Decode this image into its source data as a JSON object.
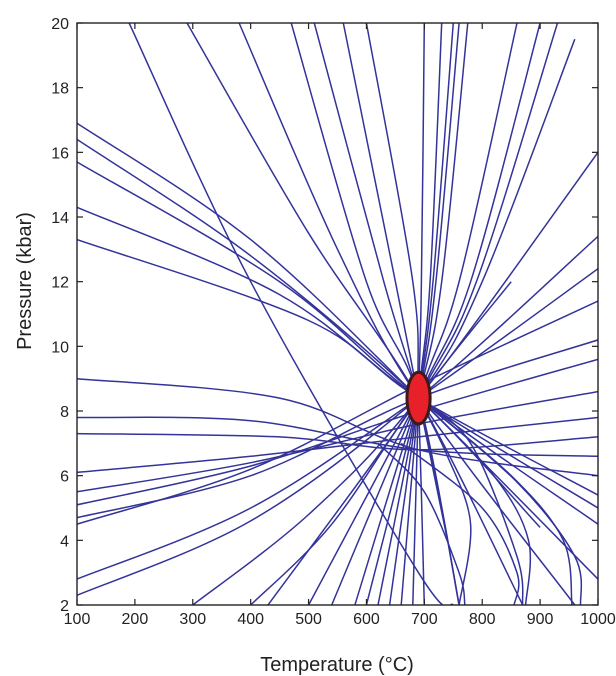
{
  "chart_data": {
    "type": "line",
    "title": "",
    "xlabel": "Temperature (°C)",
    "ylabel": "Pressure (kbar)",
    "xlim": [
      100,
      1000
    ],
    "ylim": [
      2,
      20
    ],
    "x_ticks": [
      100,
      200,
      300,
      400,
      500,
      600,
      700,
      800,
      900,
      1000
    ],
    "y_ticks": [
      2,
      4,
      6,
      8,
      10,
      12,
      14,
      16,
      18,
      20
    ],
    "grid": false,
    "colors": {
      "line": "#33339a",
      "point_fill": "#e8202a",
      "point_stroke": "#3a1a1a",
      "axis": "#222222"
    },
    "estimate": {
      "temperature": 690,
      "pressure": 8.4,
      "temperature_uncertainty": 20,
      "pressure_uncertainty": 0.8
    },
    "series": [
      {
        "points": [
          [
            100,
            16.9
          ],
          [
            400,
            13.3
          ],
          [
            690,
            8.4
          ],
          [
            1000,
            2.8
          ]
        ]
      },
      {
        "points": [
          [
            100,
            16.4
          ],
          [
            400,
            12.8
          ],
          [
            690,
            8.4
          ],
          [
            900,
            4.4
          ]
        ]
      },
      {
        "points": [
          [
            100,
            15.7
          ],
          [
            450,
            12.0
          ],
          [
            690,
            8.4
          ],
          [
            1000,
            4.5
          ]
        ]
      },
      {
        "points": [
          [
            100,
            14.3
          ],
          [
            450,
            11.6
          ],
          [
            690,
            8.4
          ],
          [
            1000,
            5.0
          ]
        ]
      },
      {
        "points": [
          [
            100,
            13.3
          ],
          [
            500,
            10.8
          ],
          [
            690,
            8.4
          ],
          [
            1000,
            5.4
          ]
        ]
      },
      {
        "points": [
          [
            100,
            9.0
          ],
          [
            450,
            8.4
          ],
          [
            690,
            6.8
          ],
          [
            1000,
            6.0
          ]
        ]
      },
      {
        "points": [
          [
            100,
            7.8
          ],
          [
            400,
            7.7
          ],
          [
            690,
            6.8
          ],
          [
            1000,
            6.6
          ]
        ]
      },
      {
        "points": [
          [
            100,
            7.3
          ],
          [
            450,
            7.2
          ],
          [
            690,
            6.8
          ],
          [
            1000,
            7.2
          ]
        ]
      },
      {
        "points": [
          [
            100,
            6.1
          ],
          [
            400,
            6.6
          ],
          [
            690,
            7.2
          ],
          [
            1000,
            7.8
          ]
        ]
      },
      {
        "points": [
          [
            100,
            5.5
          ],
          [
            400,
            6.4
          ],
          [
            690,
            7.6
          ],
          [
            1000,
            8.6
          ]
        ]
      },
      {
        "points": [
          [
            100,
            5.1
          ],
          [
            400,
            6.3
          ],
          [
            690,
            8.0
          ],
          [
            1000,
            9.6
          ]
        ]
      },
      {
        "points": [
          [
            100,
            4.7
          ],
          [
            400,
            6.0
          ],
          [
            690,
            8.4
          ],
          [
            1000,
            10.2
          ]
        ]
      },
      {
        "points": [
          [
            100,
            4.5
          ],
          [
            400,
            6.2
          ],
          [
            690,
            8.8
          ],
          [
            1000,
            11.4
          ]
        ]
      },
      {
        "points": [
          [
            100,
            2.8
          ],
          [
            400,
            5.0
          ],
          [
            690,
            8.4
          ],
          [
            1000,
            12.4
          ]
        ]
      },
      {
        "points": [
          [
            100,
            2.3
          ],
          [
            400,
            4.6
          ],
          [
            690,
            8.4
          ],
          [
            1000,
            13.4
          ]
        ]
      },
      {
        "points": [
          [
            300,
            2.0
          ],
          [
            500,
            4.8
          ],
          [
            690,
            8.4
          ],
          [
            1000,
            16.0
          ]
        ]
      },
      {
        "points": [
          [
            400,
            2.0
          ],
          [
            540,
            4.5
          ],
          [
            690,
            8.4
          ],
          [
            850,
            12.0
          ]
        ]
      },
      {
        "points": [
          [
            380,
            20.0
          ],
          [
            550,
            13.0
          ],
          [
            690,
            8.4
          ],
          [
            960,
            2.0
          ]
        ]
      },
      {
        "points": [
          [
            290,
            20.0
          ],
          [
            500,
            13.5
          ],
          [
            690,
            8.4
          ],
          [
            870,
            2.0
          ]
        ]
      },
      {
        "points": [
          [
            190,
            20.0
          ],
          [
            400,
            12.0
          ],
          [
            690,
            3.0
          ],
          [
            750,
            2.0
          ]
        ]
      },
      {
        "points": [
          [
            470,
            20.0
          ],
          [
            600,
            12.0
          ],
          [
            690,
            8.4
          ],
          [
            760,
            2.0
          ]
        ]
      },
      {
        "points": [
          [
            510,
            20.0
          ],
          [
            630,
            12.0
          ],
          [
            690,
            8.4
          ],
          [
            730,
            5.0
          ],
          [
            760,
            2.0
          ]
        ]
      },
      {
        "points": [
          [
            560,
            20.0
          ],
          [
            650,
            12.0
          ],
          [
            690,
            8.4
          ],
          [
            740,
            4.0
          ]
        ]
      },
      {
        "points": [
          [
            600,
            20.0
          ],
          [
            680,
            12.0
          ],
          [
            690,
            8.4
          ],
          [
            700,
            2.0
          ]
        ]
      },
      {
        "points": [
          [
            700,
            20.0
          ],
          [
            695,
            12.0
          ],
          [
            690,
            8.4
          ],
          [
            680,
            2.0
          ]
        ]
      },
      {
        "points": [
          [
            730,
            20.0
          ],
          [
            710,
            12.0
          ],
          [
            690,
            8.4
          ],
          [
            660,
            2.0
          ]
        ]
      },
      {
        "points": [
          [
            750,
            20.0
          ],
          [
            715,
            12.0
          ],
          [
            690,
            8.4
          ],
          [
            640,
            2.0
          ]
        ]
      },
      {
        "points": [
          [
            760,
            20.0
          ],
          [
            720,
            12.0
          ],
          [
            690,
            8.4
          ],
          [
            620,
            2.0
          ]
        ]
      },
      {
        "points": [
          [
            775,
            20.0
          ],
          [
            730,
            12.0
          ],
          [
            690,
            8.4
          ],
          [
            600,
            2.0
          ]
        ]
      },
      {
        "points": [
          [
            860,
            20.0
          ],
          [
            760,
            12.0
          ],
          [
            690,
            8.4
          ],
          [
            580,
            2.0
          ]
        ]
      },
      {
        "points": [
          [
            900,
            20.0
          ],
          [
            780,
            12.0
          ],
          [
            690,
            8.4
          ],
          [
            540,
            2.0
          ]
        ]
      },
      {
        "points": [
          [
            930,
            20.0
          ],
          [
            790,
            12.0
          ],
          [
            690,
            8.4
          ],
          [
            500,
            2.0
          ]
        ]
      },
      {
        "points": [
          [
            960,
            19.5
          ],
          [
            800,
            12.0
          ],
          [
            690,
            8.4
          ],
          [
            430,
            2.0
          ]
        ]
      },
      {
        "points": [
          [
            690,
            8.4
          ],
          [
            820,
            6.0
          ],
          [
            880,
            4.0
          ],
          [
            875,
            2.0
          ]
        ]
      },
      {
        "points": [
          [
            660,
            7.0
          ],
          [
            800,
            5.0
          ],
          [
            860,
            3.0
          ],
          [
            855,
            2.0
          ]
        ]
      },
      {
        "points": [
          [
            690,
            8.4
          ],
          [
            850,
            6.0
          ],
          [
            940,
            4.0
          ],
          [
            955,
            2.0
          ]
        ]
      },
      {
        "points": [
          [
            690,
            8.4
          ],
          [
            860,
            5.8
          ],
          [
            960,
            3.5
          ],
          [
            970,
            2.0
          ]
        ]
      },
      {
        "points": [
          [
            690,
            8.4
          ],
          [
            780,
            7.0
          ],
          [
            860,
            3.5
          ],
          [
            870,
            2.0
          ]
        ]
      },
      {
        "points": [
          [
            690,
            8.4
          ],
          [
            740,
            6.6
          ],
          [
            780,
            4.5
          ],
          [
            760,
            2.0
          ]
        ]
      },
      {
        "points": [
          [
            620,
            7.0
          ],
          [
            700,
            5.5
          ],
          [
            760,
            3.0
          ],
          [
            770,
            2.0
          ]
        ]
      }
    ]
  }
}
